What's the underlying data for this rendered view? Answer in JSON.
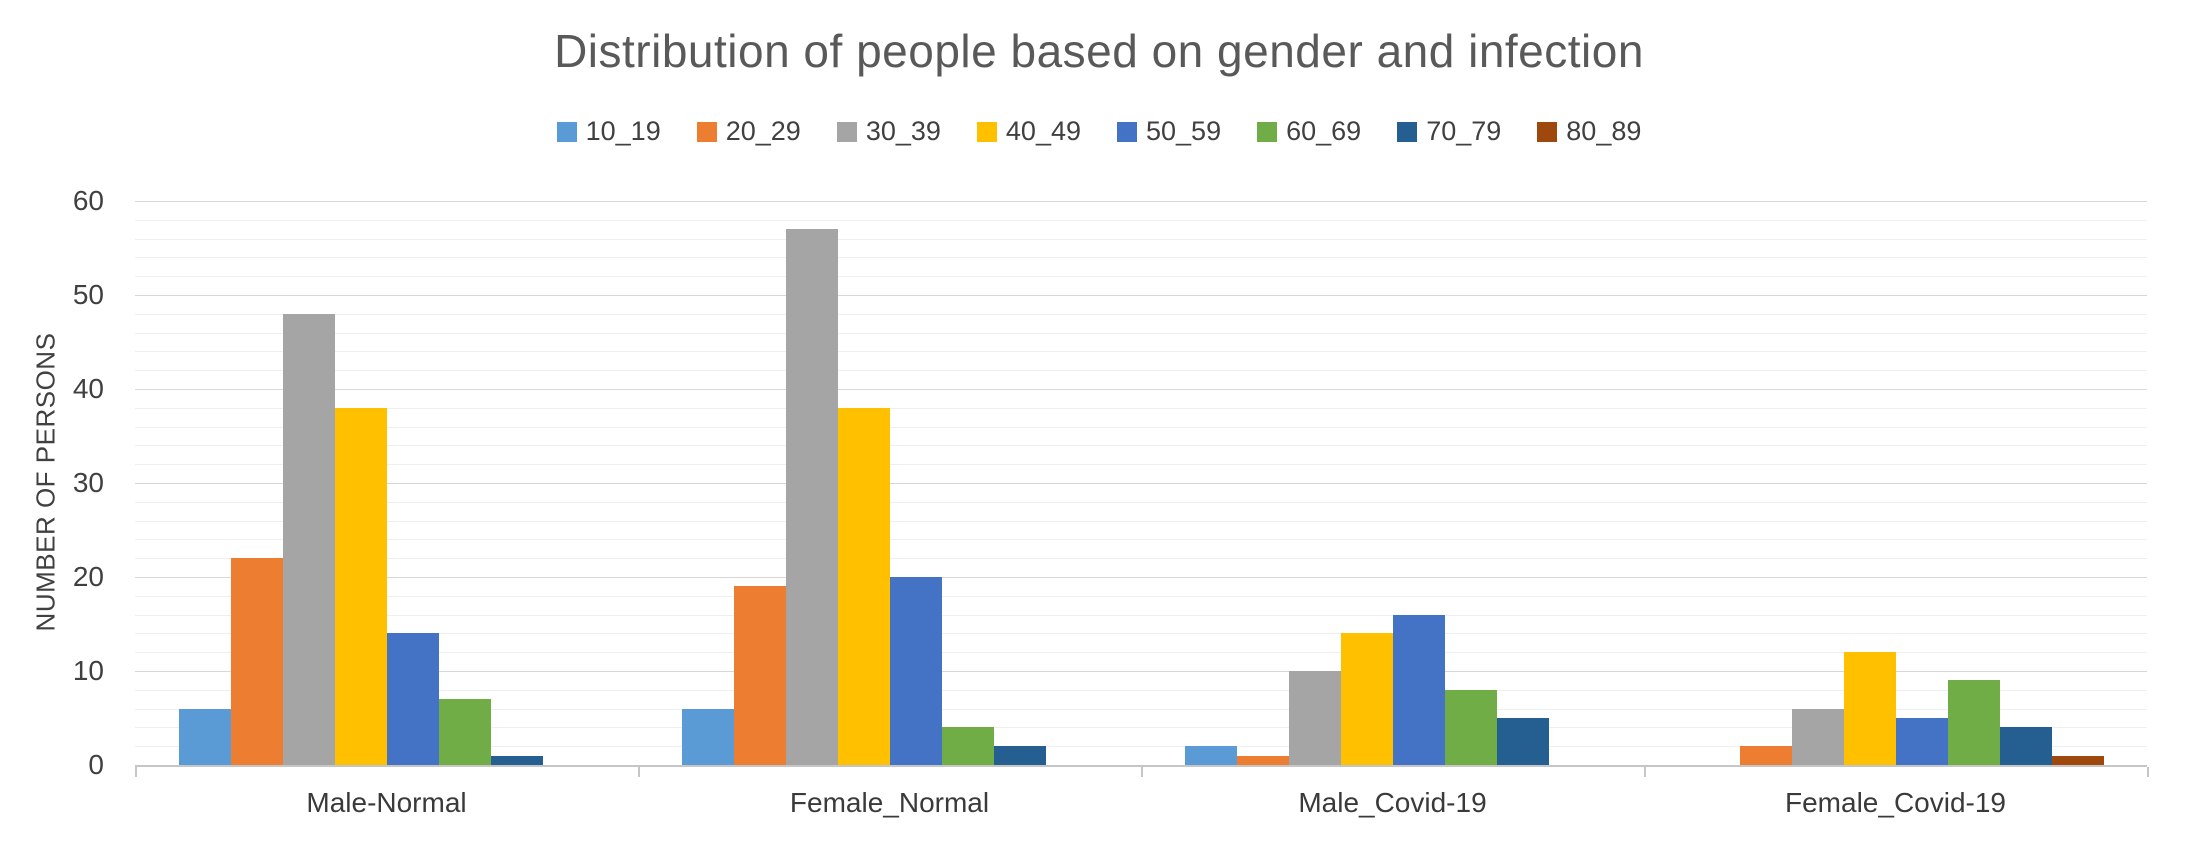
{
  "chart_data": {
    "type": "bar",
    "title": "Distribution of people based on gender and infection",
    "xlabel": "",
    "ylabel": "NUMBER OF PERSONS",
    "categories": [
      "Male-Normal",
      "Female_Normal",
      "Male_Covid-19",
      "Female_Covid-19"
    ],
    "series": [
      {
        "name": "10_19",
        "color": "#5B9BD5",
        "values": [
          6,
          6,
          2,
          0
        ]
      },
      {
        "name": "20_29",
        "color": "#ED7D31",
        "values": [
          22,
          19,
          1,
          2
        ]
      },
      {
        "name": "30_39",
        "color": "#A5A5A5",
        "values": [
          48,
          57,
          10,
          6
        ]
      },
      {
        "name": "40_49",
        "color": "#FFC000",
        "values": [
          38,
          38,
          14,
          12
        ]
      },
      {
        "name": "50_59",
        "color": "#4472C4",
        "values": [
          14,
          20,
          16,
          5
        ]
      },
      {
        "name": "60_69",
        "color": "#70AD47",
        "values": [
          7,
          4,
          8,
          9
        ]
      },
      {
        "name": "70_79",
        "color": "#255E91",
        "values": [
          1,
          2,
          5,
          4
        ]
      },
      {
        "name": "80_89",
        "color": "#9E480E",
        "values": [
          0,
          0,
          0,
          1
        ]
      }
    ],
    "ylim": [
      0,
      60
    ],
    "yticks": [
      0,
      10,
      20,
      30,
      40,
      50,
      60
    ],
    "gridlines": {
      "major": 10,
      "minor": 2,
      "visible": true
    },
    "legend_position": "top",
    "title_color": "#595959",
    "axis_text_color": "#404040"
  }
}
